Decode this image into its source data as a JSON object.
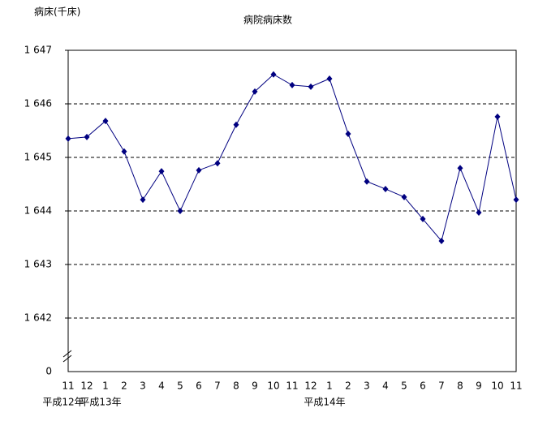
{
  "chart_data": {
    "type": "line",
    "title": "病院病床数",
    "y_label": "病床(千床)",
    "categories": [
      "11",
      "12",
      "1",
      "2",
      "3",
      "4",
      "5",
      "6",
      "7",
      "8",
      "9",
      "10",
      "11",
      "12",
      "1",
      "2",
      "3",
      "4",
      "5",
      "6",
      "7",
      "8",
      "9",
      "10",
      "11"
    ],
    "groups": [
      "平成12年",
      null,
      "平成13年",
      null,
      null,
      null,
      null,
      null,
      null,
      null,
      null,
      null,
      null,
      null,
      "平成14年",
      null,
      null,
      null,
      null,
      null,
      null,
      null,
      null,
      null,
      null
    ],
    "series": [
      {
        "name": "病院病床数",
        "color": "#000080",
        "values": [
          1645.35,
          1645.38,
          1645.68,
          1645.11,
          1644.21,
          1644.74,
          1644.0,
          1644.76,
          1644.89,
          1645.61,
          1646.23,
          1646.55,
          1646.35,
          1646.32,
          1646.47,
          1645.44,
          1644.55,
          1644.41,
          1644.26,
          1643.85,
          1643.44,
          1644.8,
          1643.97,
          1645.76,
          1644.21
        ]
      }
    ],
    "ylim": [
      1641,
      1647
    ],
    "yticks": [
      {
        "value": 1642,
        "label": "1 642"
      },
      {
        "value": 1643,
        "label": "1 643"
      },
      {
        "value": 1644,
        "label": "1 644"
      },
      {
        "value": 1645,
        "label": "1 645"
      },
      {
        "value": 1646,
        "label": "1 646"
      },
      {
        "value": 1647,
        "label": "1 647"
      }
    ],
    "axis_break_label": "0",
    "grid": true
  }
}
